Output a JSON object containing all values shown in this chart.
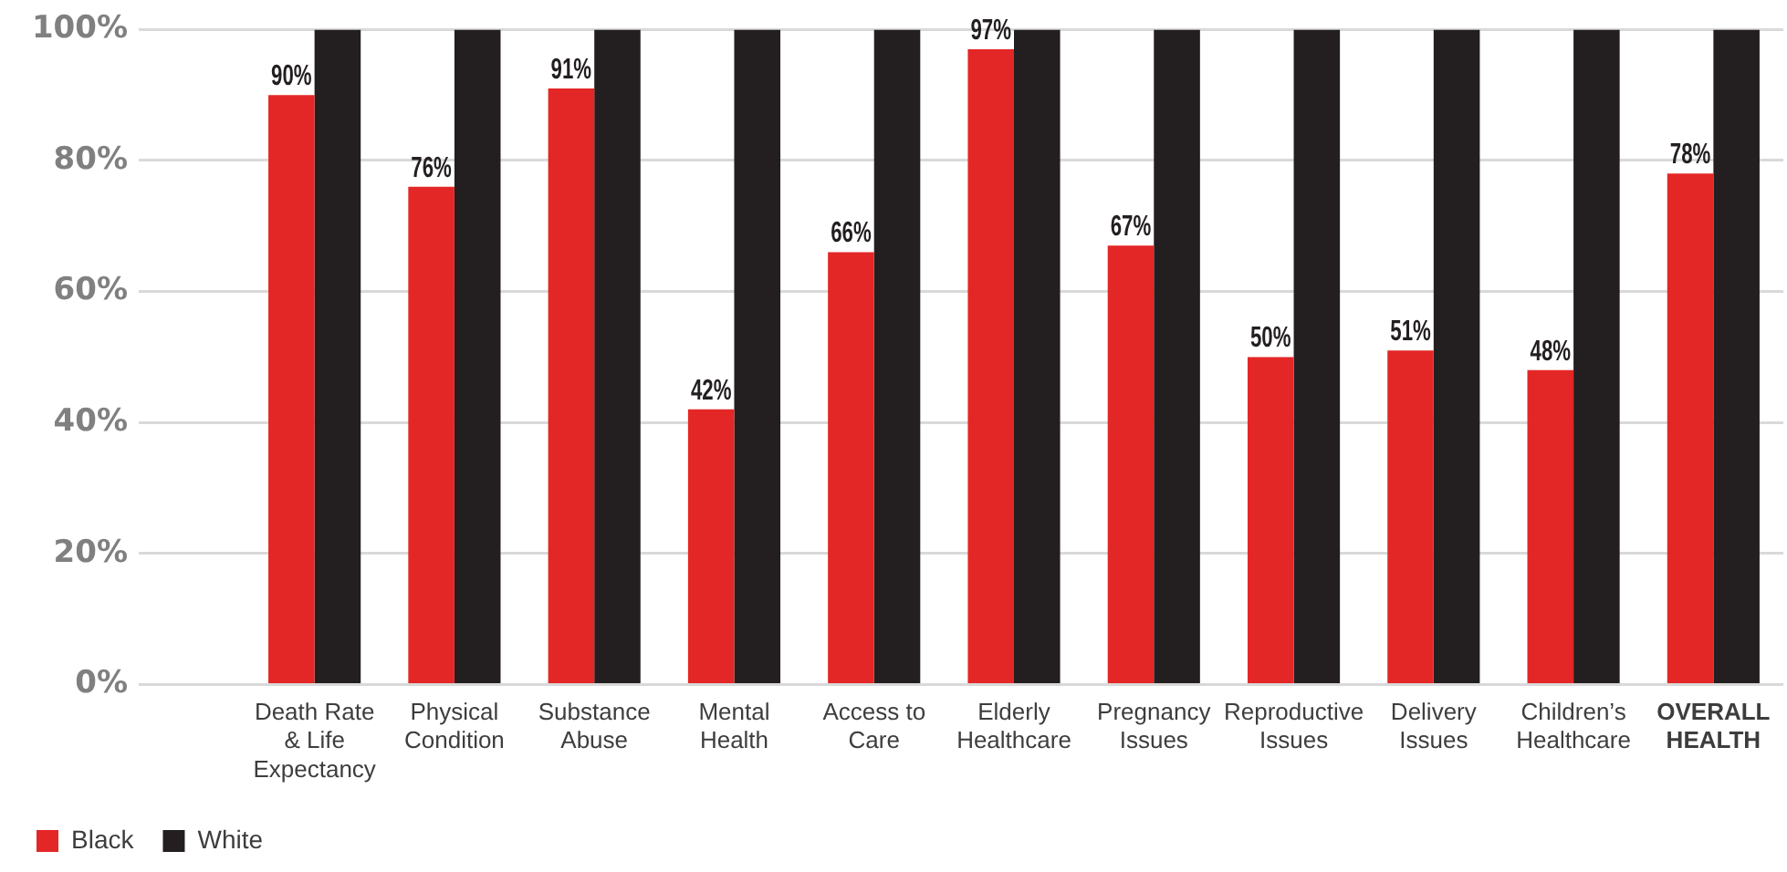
{
  "chart_data": {
    "type": "bar",
    "categories": [
      "Death Rate & Life Expectancy",
      "Physical Condition",
      "Substance Abuse",
      "Mental Health",
      "Access to Care",
      "Elderly Healthcare",
      "Pregnancy Issues",
      "Reproductive Issues",
      "Delivery Issues",
      "Children’s Healthcare",
      "OVERALL HEALTH"
    ],
    "series": [
      {
        "name": "Black",
        "color": "#e32726",
        "values": [
          90,
          76,
          91,
          42,
          66,
          97,
          67,
          50,
          51,
          48,
          78
        ],
        "value_labels": [
          "90%",
          "76%",
          "91%",
          "42%",
          "66%",
          "97%",
          "67%",
          "50%",
          "51%",
          "48%",
          "78%"
        ]
      },
      {
        "name": "White",
        "color": "#231f20",
        "values": [
          100,
          100,
          100,
          100,
          100,
          100,
          100,
          100,
          100,
          100,
          100
        ]
      }
    ],
    "ylim": [
      0,
      100
    ],
    "yticks": [
      {
        "value": 0,
        "label": "0%"
      },
      {
        "value": 20,
        "label": "20%"
      },
      {
        "value": 40,
        "label": "40%"
      },
      {
        "value": 60,
        "label": "60%"
      },
      {
        "value": 80,
        "label": "80%"
      },
      {
        "value": 100,
        "label": "100%"
      }
    ],
    "grid": "y",
    "legend": "bottom left"
  }
}
